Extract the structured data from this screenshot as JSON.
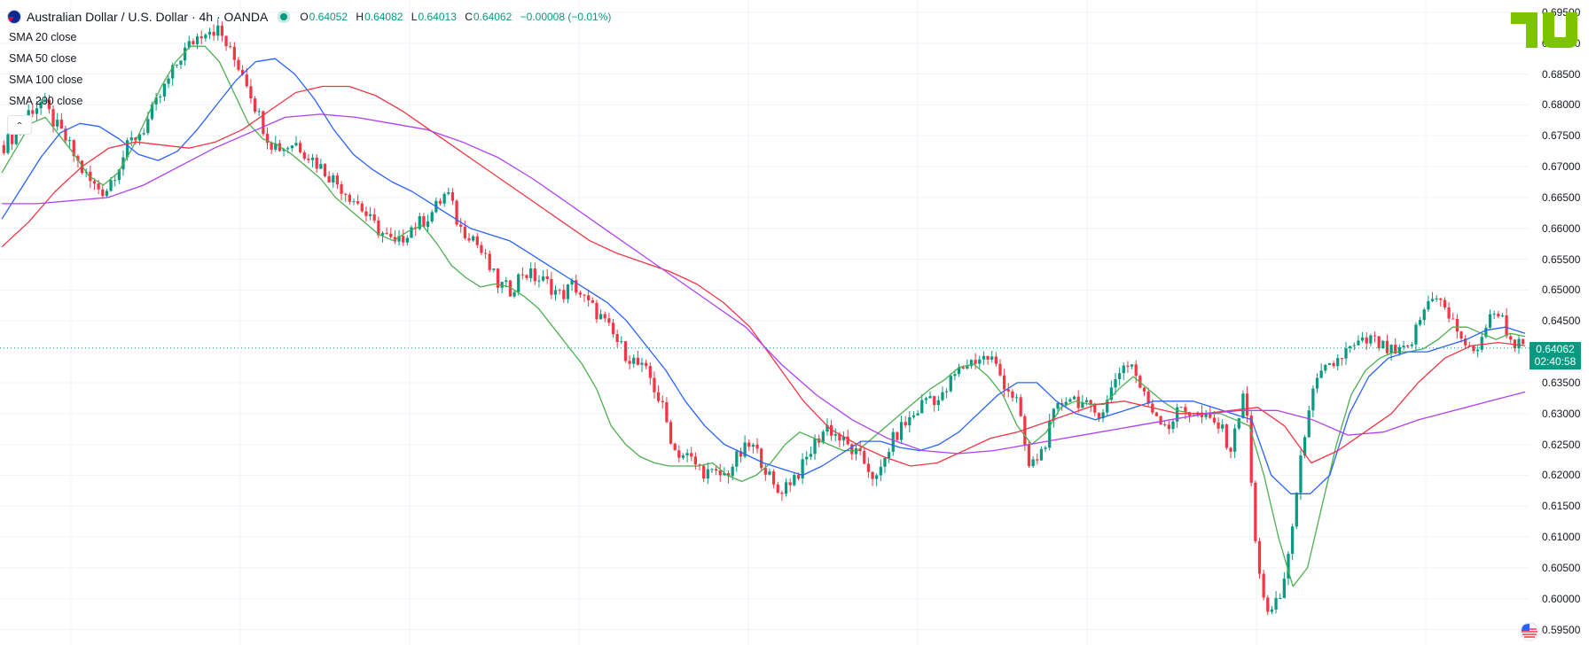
{
  "header": {
    "symbol_title": "Australian Dollar / U.S. Dollar · 4h · OANDA",
    "ohlc": {
      "o_key": "O",
      "o": "0.64052",
      "h_key": "H",
      "h": "0.64082",
      "l_key": "L",
      "l": "0.64013",
      "c_key": "C",
      "c": "0.64062",
      "change": "−0.00008 (−0.01%)"
    }
  },
  "indicators": [
    "SMA 20 close",
    "SMA 50 close",
    "SMA 100 close",
    "SMA 200 close"
  ],
  "price_label": {
    "value": "0.64062",
    "countdown": "02:40:58"
  },
  "colors": {
    "up": "#089981",
    "down": "#f23645",
    "sma20": "#4caf50",
    "sma50": "#2962ff",
    "sma100": "#f23645",
    "sma200": "#b040f5",
    "grid": "#f0f3fa"
  },
  "icons": {
    "flag": "au-us-flag-icon",
    "status": "market-status-icon",
    "collapse": "chevron-up-icon",
    "logo": "tradingview-logo-icon",
    "corner": "us-flag-icon"
  },
  "chart_data": {
    "type": "line",
    "title": "Australian Dollar / U.S. Dollar · 4h · OANDA",
    "candles": "4h OHLC candlesticks (green up #089981, red down #f23645)",
    "y_ticks": [
      "0.69500",
      "0.69000",
      "0.68500",
      "0.68000",
      "0.67500",
      "0.67000",
      "0.66500",
      "0.66000",
      "0.65500",
      "0.65000",
      "0.64500",
      "0.64000",
      "0.63500",
      "0.63000",
      "0.62500",
      "0.62000",
      "0.61500",
      "0.61000",
      "0.60500",
      "0.60000",
      "0.59500"
    ],
    "ylim": [
      0.5925,
      0.697
    ],
    "close_series": [
      0.6735,
      0.6755,
      0.679,
      0.6805,
      0.677,
      0.674,
      0.67,
      0.667,
      0.666,
      0.67,
      0.674,
      0.676,
      0.68,
      0.684,
      0.688,
      0.6905,
      0.6925,
      0.692,
      0.688,
      0.685,
      0.679,
      0.674,
      0.673,
      0.674,
      0.672,
      0.67,
      0.668,
      0.666,
      0.664,
      0.661,
      0.659,
      0.657,
      0.66,
      0.661,
      0.663,
      0.666,
      0.66,
      0.659,
      0.655,
      0.651,
      0.65,
      0.653,
      0.652,
      0.651,
      0.649,
      0.651,
      0.648,
      0.646,
      0.643,
      0.64,
      0.638,
      0.636,
      0.631,
      0.624,
      0.623,
      0.621,
      0.62,
      0.62,
      0.623,
      0.625,
      0.622,
      0.617,
      0.619,
      0.621,
      0.625,
      0.628,
      0.626,
      0.624,
      0.622,
      0.619,
      0.625,
      0.628,
      0.63,
      0.633,
      0.632,
      0.636,
      0.638,
      0.639,
      0.639,
      0.635,
      0.632,
      0.621,
      0.624,
      0.63,
      0.633,
      0.632,
      0.63,
      0.631,
      0.637,
      0.6385,
      0.633,
      0.63,
      0.628,
      0.631,
      0.63,
      0.629,
      0.628,
      0.624,
      0.635,
      0.605,
      0.597,
      0.601,
      0.615,
      0.631,
      0.636,
      0.638,
      0.64,
      0.641,
      0.642,
      0.6405,
      0.6395,
      0.6405,
      0.646,
      0.65,
      0.646,
      0.643,
      0.639,
      0.644,
      0.647,
      0.642,
      0.6406
    ],
    "series": [
      {
        "name": "SMA 20 close",
        "values": [
          0.669,
          0.673,
          0.677,
          0.678,
          0.675,
          0.672,
          0.6685,
          0.667,
          0.669,
          0.673,
          0.678,
          0.683,
          0.687,
          0.6895,
          0.6895,
          0.687,
          0.682,
          0.677,
          0.6745,
          0.6735,
          0.672,
          0.67,
          0.668,
          0.665,
          0.663,
          0.661,
          0.659,
          0.658,
          0.6595,
          0.6605,
          0.6575,
          0.654,
          0.652,
          0.6505,
          0.651,
          0.6505,
          0.649,
          0.647,
          0.644,
          0.641,
          0.638,
          0.634,
          0.628,
          0.625,
          0.623,
          0.622,
          0.6215,
          0.6215,
          0.6215,
          0.622,
          0.62,
          0.619,
          0.62,
          0.622,
          0.625,
          0.627,
          0.626,
          0.625,
          0.624,
          0.624,
          0.626,
          0.628,
          0.63,
          0.632,
          0.634,
          0.6355,
          0.6375,
          0.638,
          0.636,
          0.633,
          0.628,
          0.625,
          0.627,
          0.631,
          0.632,
          0.6315,
          0.6315,
          0.634,
          0.636,
          0.634,
          0.632,
          0.6305,
          0.63,
          0.63,
          0.63,
          0.629,
          0.628,
          0.62,
          0.61,
          0.602,
          0.605,
          0.615,
          0.625,
          0.633,
          0.637,
          0.639,
          0.64,
          0.64,
          0.6405,
          0.642,
          0.644,
          0.644,
          0.643,
          0.642,
          0.643,
          0.6425
        ]
      },
      {
        "name": "SMA 50 close",
        "values": [
          0.6615,
          0.6665,
          0.6715,
          0.6755,
          0.677,
          0.6765,
          0.6745,
          0.672,
          0.671,
          0.6725,
          0.676,
          0.68,
          0.684,
          0.687,
          0.6875,
          0.685,
          0.681,
          0.676,
          0.672,
          0.6695,
          0.6675,
          0.666,
          0.664,
          0.662,
          0.66,
          0.659,
          0.658,
          0.656,
          0.654,
          0.652,
          0.65,
          0.648,
          0.645,
          0.641,
          0.637,
          0.632,
          0.628,
          0.625,
          0.6235,
          0.622,
          0.621,
          0.62,
          0.6215,
          0.6235,
          0.6255,
          0.6255,
          0.6245,
          0.624,
          0.625,
          0.627,
          0.63,
          0.633,
          0.635,
          0.635,
          0.632,
          0.63,
          0.629,
          0.63,
          0.631,
          0.632,
          0.632,
          0.632,
          0.631,
          0.63,
          0.629,
          0.62,
          0.617,
          0.617,
          0.62,
          0.63,
          0.636,
          0.639,
          0.64,
          0.64,
          0.641,
          0.642,
          0.6435,
          0.644,
          0.643
        ]
      },
      {
        "name": "SMA 100 close",
        "values": [
          0.657,
          0.661,
          0.666,
          0.67,
          0.673,
          0.674,
          0.6735,
          0.673,
          0.674,
          0.676,
          0.679,
          0.682,
          0.683,
          0.683,
          0.6815,
          0.679,
          0.676,
          0.673,
          0.67,
          0.667,
          0.664,
          0.661,
          0.658,
          0.656,
          0.6545,
          0.653,
          0.651,
          0.648,
          0.644,
          0.638,
          0.632,
          0.6275,
          0.625,
          0.623,
          0.6215,
          0.622,
          0.624,
          0.626,
          0.627,
          0.6285,
          0.63,
          0.6315,
          0.632,
          0.631,
          0.63,
          0.63,
          0.6305,
          0.631,
          0.628,
          0.622,
          0.624,
          0.627,
          0.63,
          0.635,
          0.639,
          0.641,
          0.6415,
          0.641
        ]
      },
      {
        "name": "SMA 200 close",
        "values": [
          0.664,
          0.664,
          0.6645,
          0.665,
          0.667,
          0.67,
          0.673,
          0.6755,
          0.678,
          0.6785,
          0.678,
          0.677,
          0.676,
          0.674,
          0.6715,
          0.668,
          0.664,
          0.66,
          0.656,
          0.652,
          0.648,
          0.644,
          0.638,
          0.633,
          0.629,
          0.626,
          0.624,
          0.6235,
          0.624,
          0.625,
          0.626,
          0.627,
          0.628,
          0.629,
          0.63,
          0.6305,
          0.6305,
          0.629,
          0.6265,
          0.627,
          0.629,
          0.6305,
          0.632,
          0.6335
        ]
      }
    ]
  }
}
